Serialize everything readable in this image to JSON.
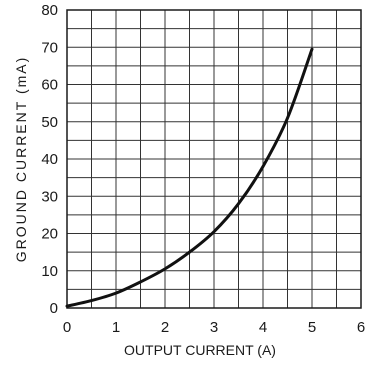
{
  "chart_data": {
    "type": "line",
    "xlabel": "OUTPUT CURRENT (A)",
    "ylabel": "GROUND CURRENT (mA)",
    "xlim": [
      0,
      6
    ],
    "ylim": [
      0,
      80
    ],
    "x_ticks": [
      "0",
      "1",
      "2",
      "3",
      "4",
      "5",
      "6"
    ],
    "y_ticks": [
      "0",
      "10",
      "20",
      "30",
      "40",
      "50",
      "60",
      "70",
      "80"
    ],
    "x_tick_values": [
      0,
      1,
      2,
      3,
      4,
      5,
      6
    ],
    "y_tick_values": [
      0,
      10,
      20,
      30,
      40,
      50,
      60,
      70,
      80
    ],
    "grid": true,
    "x_grid_step": 0.5,
    "y_grid_step": 5,
    "series": [
      {
        "x": [
          0,
          0.5,
          1,
          1.5,
          2,
          2.5,
          3,
          3.5,
          4,
          4.5,
          5
        ],
        "values": [
          0.5,
          2,
          4,
          7,
          10.5,
          15,
          20.5,
          28,
          38,
          51,
          69.5
        ]
      }
    ]
  }
}
